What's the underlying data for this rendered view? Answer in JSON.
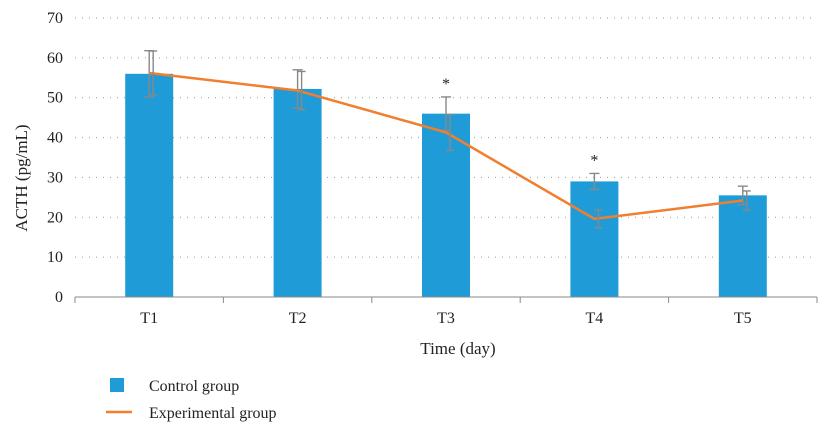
{
  "chart_data": {
    "type": "bar",
    "categories": [
      "T1",
      "T2",
      "T3",
      "T4",
      "T5"
    ],
    "series": [
      {
        "name": "Control group",
        "type": "bar",
        "values": [
          56,
          52.2,
          46,
          29,
          25.5
        ],
        "error": [
          5.8,
          4.8,
          4.2,
          2.0,
          2.3
        ],
        "color": "#1f9cd8"
      },
      {
        "name": "Experimental group",
        "type": "line",
        "values": [
          56.2,
          51.8,
          41.3,
          19.6,
          24.2
        ],
        "error": [
          5.5,
          4.8,
          4.5,
          2.2,
          2.4
        ],
        "color": "#f07f2e"
      }
    ],
    "significance": [
      "",
      "",
      "*",
      "*",
      ""
    ],
    "xlabel": "Time (day)",
    "ylabel": "ACTH (pg/mL)",
    "ylim": [
      0,
      70
    ],
    "yticks": [
      0,
      10,
      20,
      30,
      40,
      50,
      60,
      70
    ],
    "grid": true,
    "legend": "bottom-left"
  }
}
